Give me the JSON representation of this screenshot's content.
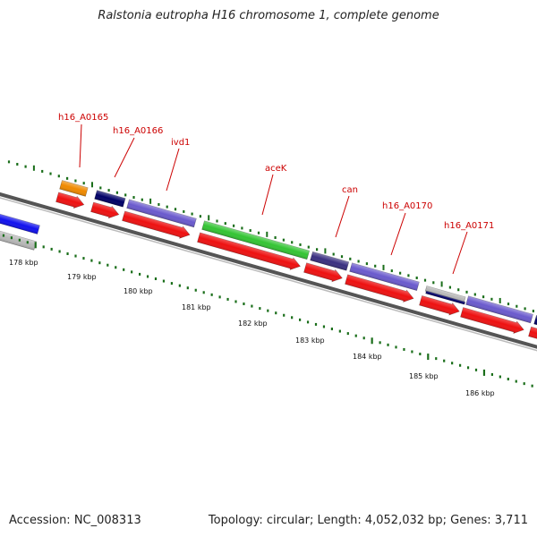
{
  "title": "Ralstonia eutropha H16 chromosome 1, complete genome",
  "footer": {
    "accession": "Accession: NC_008313",
    "summary": "Topology: circular; Length: 4,052,032 bp; Genes: 3,711"
  },
  "colors": {
    "backbone": "#777777",
    "cds": "#ee1111",
    "tick": "#1a6e1a",
    "label": "#cc0000"
  },
  "scale_labels": [
    "178 kbp",
    "179 kbp",
    "180 kbp",
    "181 kbp",
    "182 kbp",
    "183 kbp",
    "184 kbp",
    "185 kbp",
    "186 kbp"
  ],
  "gene_labels": [
    "h16_A0165",
    "h16_A0166",
    "ivd1",
    "aceK",
    "can",
    "h16_A0170",
    "h16_A0171"
  ],
  "feature_colors": {
    "orange": "#f08a00",
    "navy": "#000066",
    "slate": "#6a5acd",
    "green": "#33c433",
    "dark_slate": "#3a3080",
    "blue": "#1111ee",
    "gray": "#b8b8b8"
  }
}
